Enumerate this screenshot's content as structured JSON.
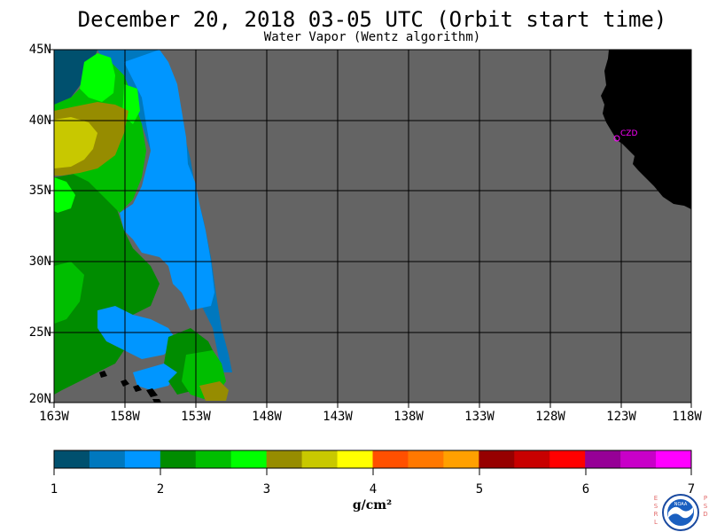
{
  "title": "December 20, 2018  03-05 UTC  (Orbit start time)",
  "subtitle": "Water Vapor (Wentz algorithm)",
  "lat_labels": [
    "45N",
    "40N",
    "35N",
    "30N",
    "25N",
    "20N"
  ],
  "lon_labels": [
    "163W",
    "158W",
    "153W",
    "148W",
    "143W",
    "138W",
    "133W",
    "128W",
    "123W",
    "118W"
  ],
  "station": {
    "label": "CZD"
  },
  "colorbar": {
    "units": "g/cm²",
    "tick_labels": [
      "1",
      "2",
      "3",
      "4",
      "5",
      "6",
      "7"
    ],
    "colors": [
      "#00506e",
      "#0078be",
      "#0096ff",
      "#008c00",
      "#00be00",
      "#00ff00",
      "#968c00",
      "#c8c800",
      "#ffff00",
      "#ff5000",
      "#ff7800",
      "#ffa000",
      "#960000",
      "#c80000",
      "#ff0000",
      "#960096",
      "#c800c8",
      "#ff00ff"
    ]
  },
  "colors": {
    "land": "#000000",
    "no_data": "#646464",
    "grid": "#000000",
    "station": "#ff00ff"
  },
  "logo": {
    "left_letters": [
      "E",
      "S",
      "R",
      "L"
    ],
    "right_letters": [
      "P",
      "S",
      "D"
    ],
    "name": "NOAA"
  }
}
